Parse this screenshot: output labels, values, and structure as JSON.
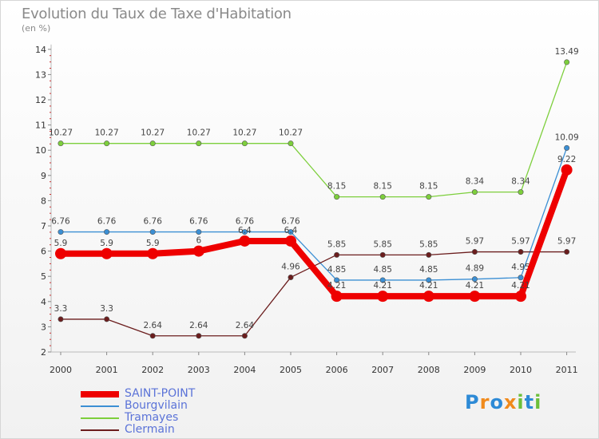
{
  "header": {
    "title": "Evolution du Taux de Taxe d'Habitation",
    "subtitle": "(en %)"
  },
  "chart_data": {
    "type": "line",
    "x": [
      "2000",
      "2001",
      "2002",
      "2003",
      "2004",
      "2005",
      "2006",
      "2007",
      "2008",
      "2009",
      "2010",
      "2011"
    ],
    "yticks": [
      "2",
      "3",
      "4",
      "5",
      "6",
      "7",
      "8",
      "9",
      "10",
      "11",
      "12",
      "13",
      "14"
    ],
    "ylim": [
      2,
      14
    ],
    "grid": false,
    "legend_position": "bottom-left",
    "series": [
      {
        "name": "Tramayes",
        "color": "#7dcf3c",
        "values": [
          10.27,
          10.27,
          10.27,
          10.27,
          10.27,
          10.27,
          8.15,
          8.15,
          8.15,
          8.34,
          8.34,
          13.49
        ],
        "labels": [
          "10.27",
          "10.27",
          "10.27",
          "10.27",
          "10.27",
          "10.27",
          "8.15",
          "8.15",
          "8.15",
          "8.34",
          "8.34",
          "13.49"
        ]
      },
      {
        "name": "Bourgvilain",
        "color": "#3b8fd4",
        "values": [
          6.76,
          6.76,
          6.76,
          6.76,
          6.76,
          6.76,
          4.85,
          4.85,
          4.85,
          4.89,
          4.95,
          10.09
        ],
        "labels": [
          "6.76",
          "6.76",
          "6.76",
          "6.76",
          "6.76",
          "6.76",
          "4.85",
          "4.85",
          "4.85",
          "4.89",
          "4.95",
          "10.09"
        ]
      },
      {
        "name": "Clermain",
        "color": "#6b1d1d",
        "values": [
          3.3,
          3.3,
          2.64,
          2.64,
          2.64,
          4.96,
          5.85,
          5.85,
          5.85,
          5.97,
          5.97,
          5.97
        ],
        "labels": [
          "3.3",
          "3.3",
          "2.64",
          "2.64",
          "2.64",
          "4.96",
          "5.85",
          "5.85",
          "5.85",
          "5.97",
          "5.97",
          "5.97"
        ]
      },
      {
        "name": "SAINT-POINT",
        "color": "#ee0000",
        "values": [
          5.9,
          5.9,
          5.9,
          6.0,
          6.4,
          6.4,
          4.21,
          4.21,
          4.21,
          4.21,
          4.21,
          9.22
        ],
        "labels": [
          "5.9",
          "5.9",
          "5.9",
          "6",
          "6.4",
          "6.4",
          "4.21",
          "4.21",
          "4.21",
          "4.21",
          "4.21",
          "9.22"
        ]
      }
    ]
  },
  "legend": {
    "items": [
      {
        "label": "SAINT-POINT",
        "color": "#ee0000"
      },
      {
        "label": "Bourgvilain",
        "color": "#3b8fd4"
      },
      {
        "label": "Tramayes",
        "color": "#7dcf3c"
      },
      {
        "label": "Clermain",
        "color": "#6b1d1d"
      }
    ]
  },
  "logo": {
    "text": "Proxiti",
    "letters": [
      "P",
      "r",
      "o",
      "x",
      "i",
      "t",
      "i"
    ],
    "colors": [
      "#2d8ad6",
      "#f08a1c",
      "#2d8ad6",
      "#f08a1c",
      "#6cbf3a",
      "#2d8ad6",
      "#6cbf3a"
    ]
  }
}
